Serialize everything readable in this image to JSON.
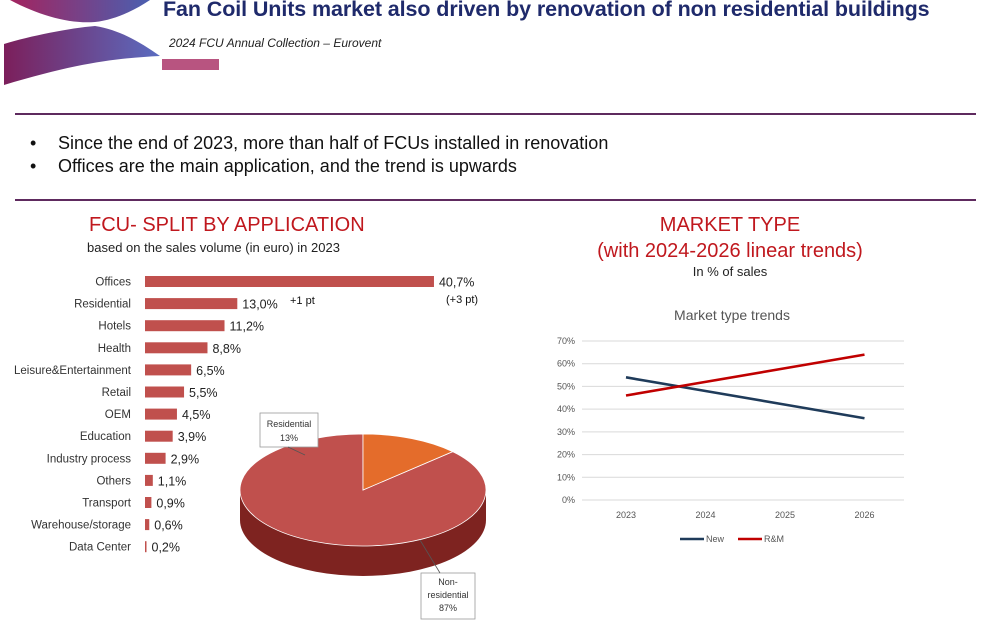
{
  "slide": {
    "title": "Fan Coil Units market also driven by renovation of non residential buildings",
    "subtitle": "2024 FCU Annual Collection – Eurovent",
    "bullets": [
      "Since the end of 2023, more than half of FCUs installed in renovation",
      "Offices are the main application, and the trend is upwards"
    ]
  },
  "colors": {
    "title": "#1f2a6b",
    "accent": "#b85480",
    "rule": "#5e2a5e",
    "section_title": "#c0181e",
    "bar": "#c0504d",
    "pie_main": "#c0504d",
    "pie_residential": "#e46c2b",
    "line_new": "#1f3b5a",
    "line_rm": "#c00000"
  },
  "left_panel": {
    "title": "FCU- SPLIT BY APPLICATION",
    "subtitle": "based on the sales volume (in euro) in 2023"
  },
  "right_panel": {
    "title_line1": "MARKET TYPE",
    "title_line2": "(with 2024-2026 linear trends)",
    "subtitle": "In % of sales"
  },
  "chart_data": [
    {
      "type": "bar",
      "orientation": "horizontal",
      "categories": [
        "Offices",
        "Residential",
        "Hotels",
        "Health",
        "Leisure&Entertainment",
        "Retail",
        "OEM",
        "Education",
        "Industry process",
        "Others",
        "Transport",
        "Warehouse/storage",
        "Data Center"
      ],
      "values": [
        40.7,
        13.0,
        11.2,
        8.8,
        6.5,
        5.5,
        4.5,
        3.9,
        2.9,
        1.1,
        0.9,
        0.6,
        0.2
      ],
      "labels": [
        "40,7%",
        "13,0%",
        "11,2%",
        "8,8%",
        "6,5%",
        "5,5%",
        "4,5%",
        "3,9%",
        "2,9%",
        "1,1%",
        "0,9%",
        "0,6%",
        "0,2%"
      ],
      "unit": "%",
      "annotations": [
        "(+3 pt)",
        "+1 pt"
      ]
    },
    {
      "type": "pie",
      "slices": [
        {
          "name": "Non-residential",
          "value": 87,
          "label": "87%"
        },
        {
          "name": "Residential",
          "value": 13,
          "label": "13%"
        }
      ]
    },
    {
      "type": "line",
      "title": "Market type trends",
      "x": [
        "2023",
        "2024",
        "2025",
        "2026"
      ],
      "series": [
        {
          "name": "New",
          "values": [
            54,
            48,
            42,
            36
          ]
        },
        {
          "name": "R&M",
          "values": [
            46,
            52,
            58,
            64
          ]
        }
      ],
      "ylim": [
        0,
        70
      ],
      "yticks": [
        "0%",
        "10%",
        "20%",
        "30%",
        "40%",
        "50%",
        "60%",
        "70%"
      ],
      "grid": true,
      "legend": "bottom"
    }
  ]
}
